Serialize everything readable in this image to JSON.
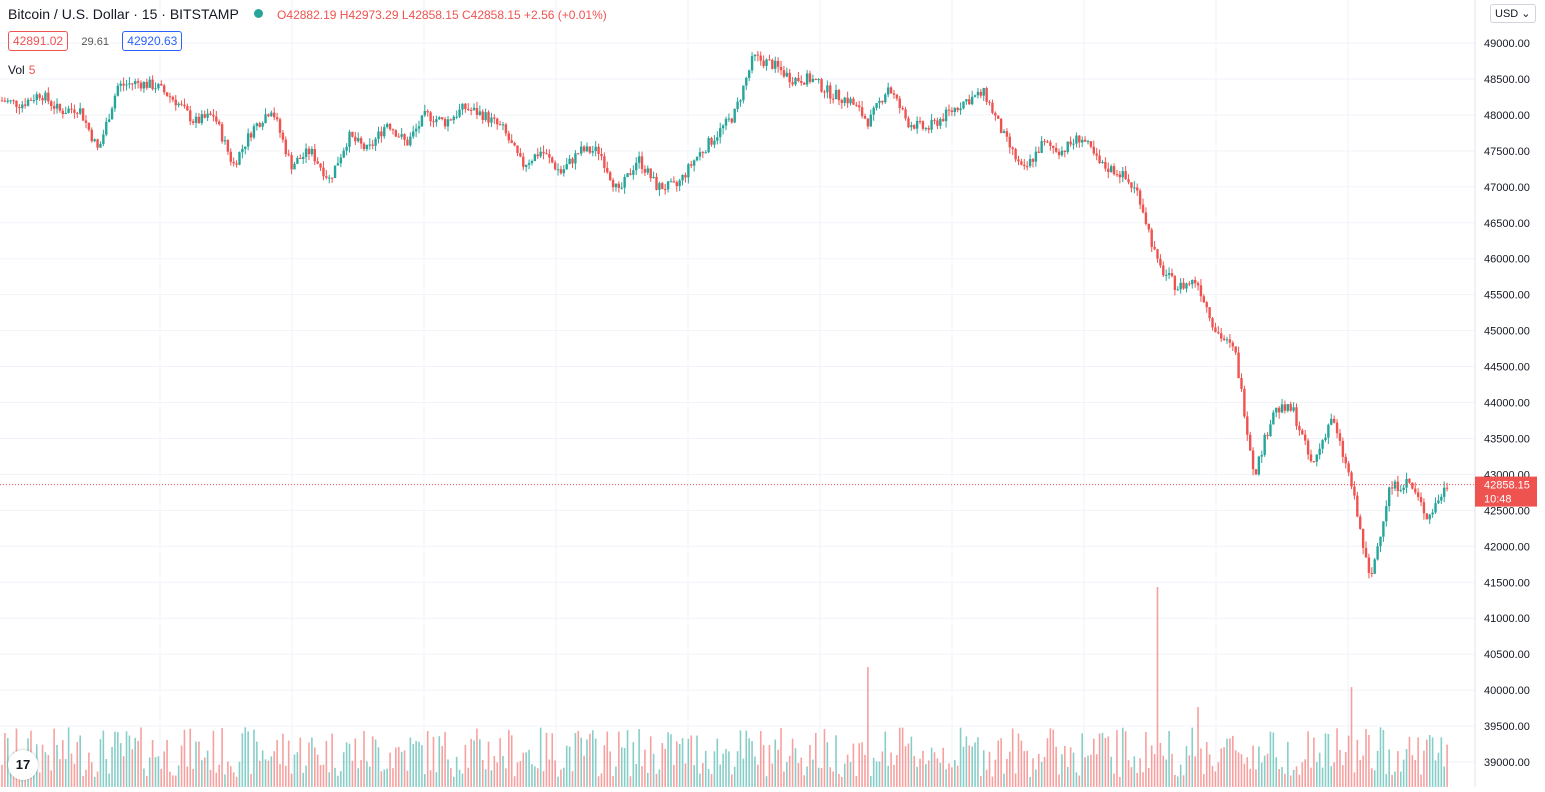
{
  "header": {
    "title": "Bitcoin / U.S. Dollar · 15 · BITSTAMP",
    "ohlc": {
      "o_label": "O",
      "o": "42882.19",
      "h_label": "H",
      "h": "42973.29",
      "l_label": "L",
      "l": "42858.15",
      "c_label": "C",
      "c": "42858.15",
      "change": "+2.56 (+0.01%)"
    },
    "bid": "42891.02",
    "spread": "29.61",
    "ask": "42920.63",
    "vol_label": "Vol",
    "vol_value": "5"
  },
  "currency": "USD",
  "last_price_label": {
    "price": "42858.15",
    "countdown": "10:48"
  },
  "colors": {
    "up": "#26a69a",
    "down": "#ef5350",
    "grid": "#f0f3fa",
    "axis_text": "#131722",
    "price_line": "#ef5350"
  },
  "chart_data": {
    "type": "candlestick",
    "symbol": "BTCUSD",
    "interval": "15",
    "ylim": [
      38800,
      49300
    ],
    "y_ticks": [
      "39000.00",
      "39500.00",
      "40000.00",
      "40500.00",
      "41000.00",
      "41500.00",
      "42000.00",
      "42500.00",
      "43000.00",
      "43500.00",
      "44000.00",
      "44500.00",
      "45000.00",
      "45500.00",
      "46000.00",
      "46500.00",
      "47000.00",
      "47500.00",
      "48000.00",
      "48500.00",
      "49000.00"
    ],
    "last_price": 42858.15,
    "close_path": [
      [
        0,
        48200
      ],
      [
        1,
        48150
      ],
      [
        2,
        48300
      ],
      [
        3,
        48050
      ],
      [
        4,
        48100
      ],
      [
        5,
        47500
      ],
      [
        6,
        48400
      ],
      [
        7,
        48450
      ],
      [
        8,
        48400
      ],
      [
        9,
        48200
      ],
      [
        10,
        47900
      ],
      [
        11,
        48000
      ],
      [
        12,
        47300
      ],
      [
        13,
        47800
      ],
      [
        14,
        48100
      ],
      [
        15,
        47300
      ],
      [
        16,
        47500
      ],
      [
        17,
        47100
      ],
      [
        18,
        47700
      ],
      [
        19,
        47500
      ],
      [
        20,
        47900
      ],
      [
        21,
        47600
      ],
      [
        22,
        48000
      ],
      [
        23,
        47900
      ],
      [
        24,
        48100
      ],
      [
        25,
        48000
      ],
      [
        26,
        47800
      ],
      [
        27,
        47300
      ],
      [
        28,
        47500
      ],
      [
        29,
        47200
      ],
      [
        30,
        47500
      ],
      [
        31,
        47500
      ],
      [
        32,
        46900
      ],
      [
        33,
        47400
      ],
      [
        34,
        47000
      ],
      [
        35,
        47000
      ],
      [
        36,
        47400
      ],
      [
        37,
        47700
      ],
      [
        38,
        48000
      ],
      [
        39,
        48800
      ],
      [
        40,
        48700
      ],
      [
        41,
        48500
      ],
      [
        42,
        48500
      ],
      [
        43,
        48300
      ],
      [
        44,
        48200
      ],
      [
        45,
        47900
      ],
      [
        46,
        48400
      ],
      [
        47,
        47900
      ],
      [
        48,
        47800
      ],
      [
        49,
        48000
      ],
      [
        50,
        48200
      ],
      [
        51,
        48300
      ],
      [
        52,
        47700
      ],
      [
        53,
        47200
      ],
      [
        54,
        47600
      ],
      [
        55,
        47500
      ],
      [
        56,
        47700
      ],
      [
        57,
        47300
      ],
      [
        58,
        47200
      ],
      [
        59,
        46900
      ],
      [
        60,
        45900
      ],
      [
        61,
        45600
      ],
      [
        62,
        45700
      ],
      [
        63,
        45000
      ],
      [
        64,
        44700
      ],
      [
        65,
        43000
      ],
      [
        66,
        43900
      ],
      [
        67,
        43900
      ],
      [
        68,
        43100
      ],
      [
        69,
        43800
      ],
      [
        70,
        42900
      ],
      [
        71,
        41500
      ],
      [
        72,
        42800
      ],
      [
        73,
        42900
      ],
      [
        74,
        42400
      ],
      [
        75,
        42858
      ]
    ],
    "volume_peaks": [
      [
        45,
        0.6
      ],
      [
        60,
        1.0
      ],
      [
        62,
        0.4
      ],
      [
        70,
        0.5
      ]
    ]
  }
}
